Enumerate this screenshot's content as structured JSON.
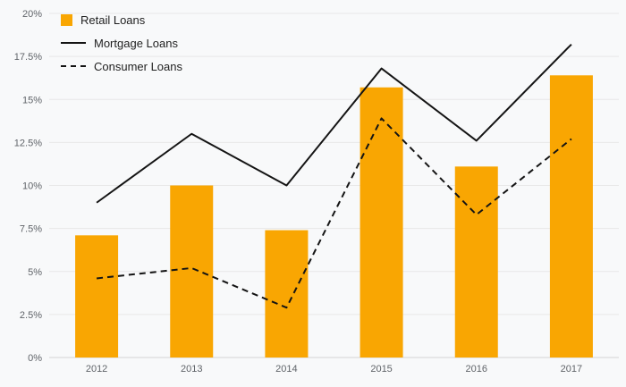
{
  "chart": {
    "background": "#f8f9fa",
    "bar_color": "#f9a602",
    "line_color": "#141414",
    "grid_color": "#e8e8e8",
    "axis_color": "#d4d4d4",
    "tick_color": "#5f6368"
  },
  "legend": {
    "items": [
      {
        "label": "Retail Loans",
        "type": "bar"
      },
      {
        "label": "Mortgage Loans",
        "type": "line-solid"
      },
      {
        "label": "Consumer Loans",
        "type": "line-dashed"
      }
    ]
  },
  "chart_data": {
    "type": "bar",
    "title": "",
    "xlabel": "",
    "ylabel": "",
    "categories": [
      "2012",
      "2013",
      "2014",
      "2015",
      "2016",
      "2017"
    ],
    "series": [
      {
        "name": "Retail Loans",
        "type": "bar",
        "style": "solid",
        "values": [
          7.1,
          10.0,
          7.4,
          15.7,
          11.1,
          16.4
        ]
      },
      {
        "name": "Mortgage Loans",
        "type": "line",
        "style": "solid",
        "values": [
          9.0,
          13.0,
          10.0,
          16.8,
          12.6,
          18.2
        ]
      },
      {
        "name": "Consumer Loans",
        "type": "line",
        "style": "dashed",
        "values": [
          4.6,
          5.2,
          2.9,
          13.9,
          8.3,
          12.7
        ]
      }
    ],
    "ylim": [
      0,
      20
    ],
    "ytick_step": 2.5,
    "ytick_labels": [
      "0%",
      "2.5%",
      "5%",
      "7.5%",
      "10%",
      "12.5%",
      "15%",
      "17.5%",
      "20%"
    ],
    "grid": true,
    "legend_position": "top-left"
  }
}
